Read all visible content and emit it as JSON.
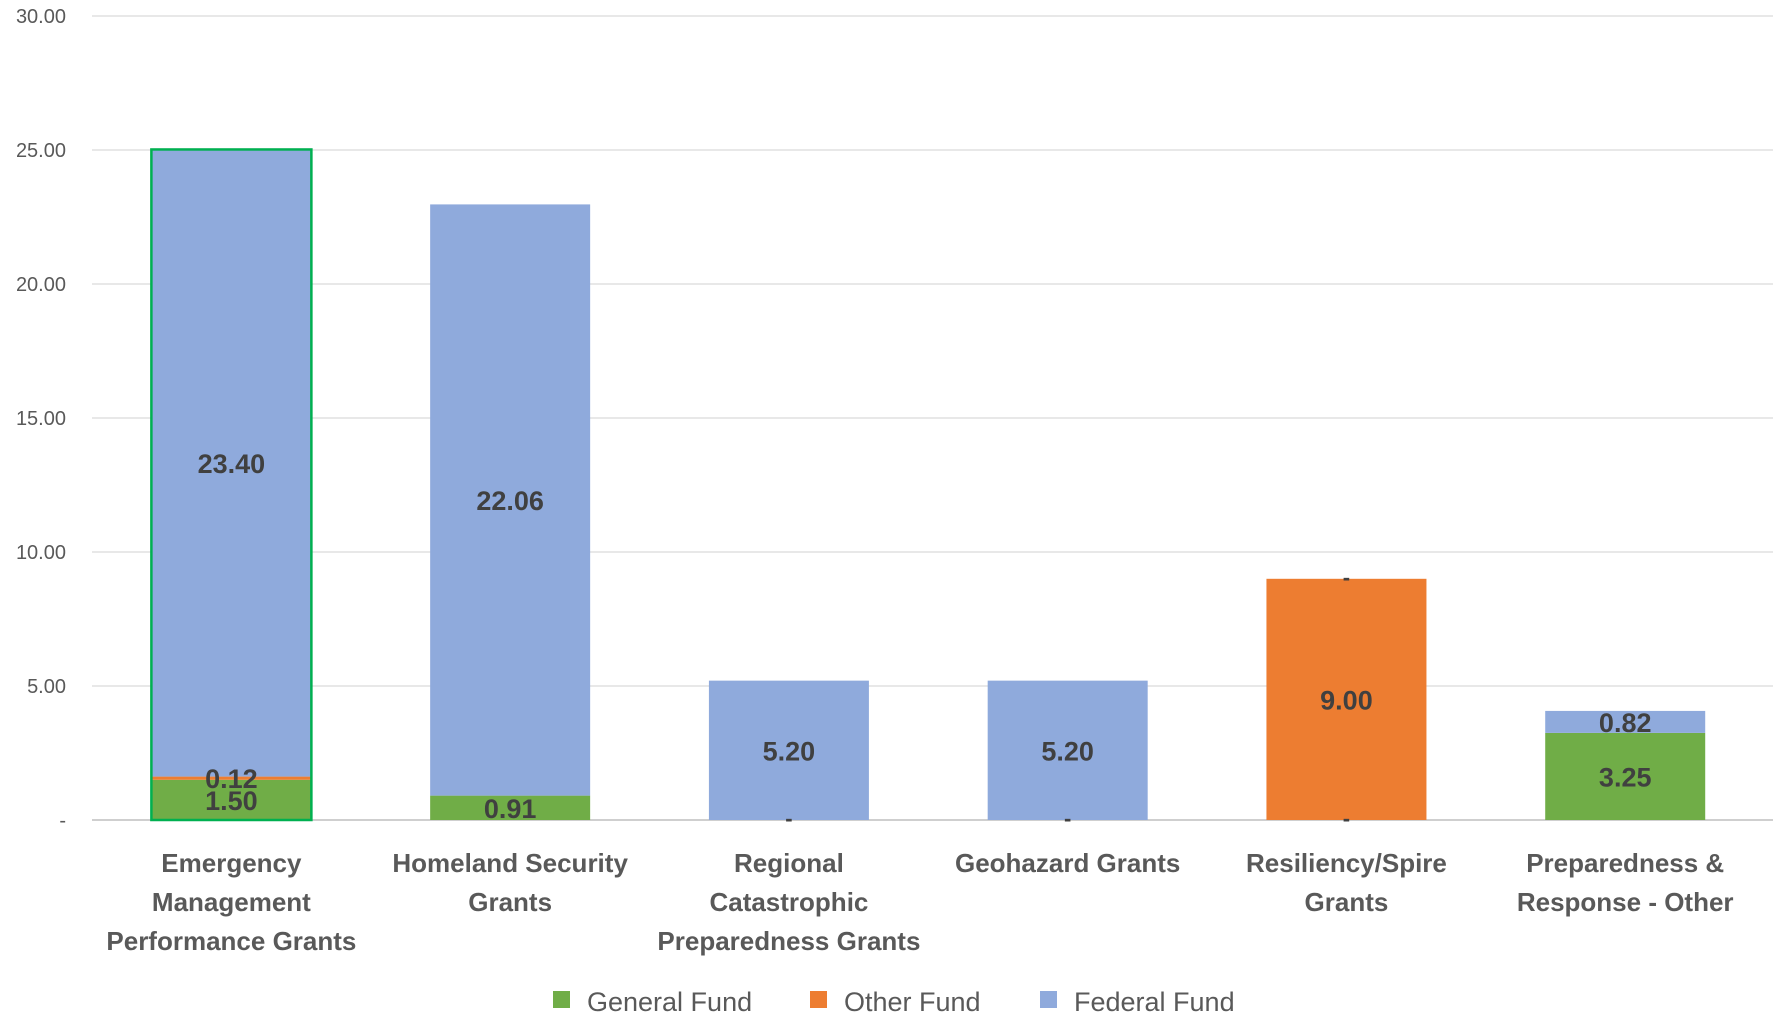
{
  "chart_data": {
    "type": "bar",
    "stacked": true,
    "categories": [
      [
        "Emergency",
        "Management",
        "Performance Grants"
      ],
      [
        "Homeland Security",
        "Grants"
      ],
      [
        "Regional",
        "Catastrophic",
        "Preparedness Grants"
      ],
      [
        "Geohazard Grants"
      ],
      [
        "Resiliency/Spire",
        "Grants"
      ],
      [
        "Preparedness &",
        "Response - Other"
      ]
    ],
    "series": [
      {
        "name": "General Fund",
        "color": "#70AD47",
        "values": [
          1.5,
          0.91,
          0,
          0,
          0,
          3.25
        ],
        "labels": [
          "1.50",
          "0.91",
          "-",
          "-",
          "-",
          "3.25"
        ]
      },
      {
        "name": "Other Fund",
        "color": "#ED7D31",
        "values": [
          0.12,
          0,
          0,
          0,
          9.0,
          0
        ],
        "labels": [
          "0.12",
          "",
          "",
          "",
          "9.00",
          ""
        ]
      },
      {
        "name": "Federal Fund",
        "color": "#8FAADC",
        "values": [
          23.4,
          22.06,
          5.2,
          5.2,
          0,
          0.82
        ],
        "labels": [
          "23.40",
          "22.06",
          "5.20",
          "5.20",
          "-",
          "0.82"
        ]
      }
    ],
    "ylim": [
      0,
      30
    ],
    "yticks": [
      0,
      5,
      10,
      15,
      20,
      25,
      30
    ],
    "ytick_labels": [
      "-",
      "5.00",
      "10.00",
      "15.00",
      "20.00",
      "25.00",
      "30.00"
    ],
    "highlighted_category": 0,
    "highlight_color": "#00B050",
    "grid": true,
    "legend_position": "bottom"
  }
}
